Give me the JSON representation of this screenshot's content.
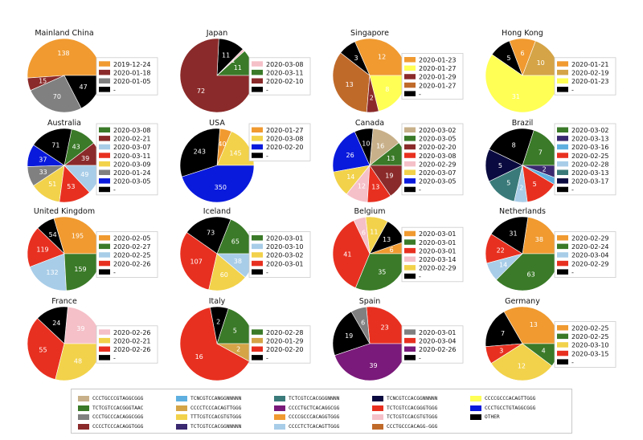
{
  "colors": {
    "CCCTGCCCGTAGGCGGG": "#c8b08a",
    "TCTCGTCCACGGGTAAC": "#3a7a28",
    "CCCTGCCCACAGGCGGG": "#808080",
    "CCCCTCCCACAGGTGGG": "#8b2a2a",
    "TCNCGTCCANGGNNNNN": "#5fb0e0",
    "CCCCTCCCACAGTTGGG": "#d4a447",
    "TTTCGTCCACGTGTGGG": "#f2d24a",
    "TCTCGTCCACGGNNNNN": "#3a2870",
    "TCTCGTCCACGGGNNNN": "#3a7a7a",
    "CCCCTGCTCACAGGCGG": "#7a1a7a",
    "CCCCGCCCACAGGTGGG": "#f09a30",
    "CCCCTCTCACAGTTGGG": "#a8cde8",
    "TCNCGTCCACGGNNNNN": "#0a0a40",
    "TCTCGTCCACGGGTGGG": "#e83020",
    "TCTCGTCCACGTGTGGG": "#f5c0c8",
    "CCCTGCCCACAGG-GGG": "#c06a2a",
    "CCCCGCCCACAGTTGGG": "#ffff55",
    "CCCTGCCTGTAGGCGGG": "#0a1adc",
    "OTHER": "#000000"
  },
  "bottom_legend": {
    "columns": [
      [
        "CCCTGCCCGTAGGCGGG",
        "TCTCGTCCACGGGTAAC",
        "CCCTGCCCACAGGCGGG",
        "CCCCTCCCACAGGTGGG"
      ],
      [
        "TCNCGTCCANGGNNNNN",
        "CCCCTCCCACAGTTGGG",
        "TTTCGTCCACGTGTGGG",
        "TCTCGTCCACGGNNNNN"
      ],
      [
        "TCTCGTCCACGGGNNNN",
        "CCCCTGCTCACAGGCGG",
        "CCCCGCCCACAGGTGGG",
        "CCCCTCTCACAGTTGGG"
      ],
      [
        "TCNCGTCCACGGNNNNN",
        "TCTCGTCCACGGGTGGG",
        "TCTCGTCCACGTGTGGG",
        "CCCTGCCCACAGG-GGG"
      ],
      [
        "CCCCGCCCACAGTTGGG",
        "CCCTGCCTGTAGGCGGG",
        "OTHER"
      ]
    ]
  },
  "chart_data": [
    {
      "type": "pie",
      "title": "Mainland China",
      "slices": [
        {
          "seq": "CCCCGCCCACAGGTGGG",
          "value": 138,
          "label": "138"
        },
        {
          "seq": "CCCCTCCCACAGGTGGG",
          "value": 15,
          "label": "15"
        },
        {
          "seq": "CCCTGCCCACAGGCGGG",
          "value": 70,
          "label": "70"
        },
        {
          "seq": "OTHER",
          "value": 47,
          "label": "47"
        }
      ],
      "legend": [
        {
          "seq": "CCCCGCCCACAGGTGGG",
          "label": "2019-12-24"
        },
        {
          "seq": "CCCCTCCCACAGGTGGG",
          "label": "2020-01-18"
        },
        {
          "seq": "CCCTGCCCACAGGCGGG",
          "label": "2020-01-05"
        },
        {
          "seq": "OTHER",
          "label": "-"
        }
      ]
    },
    {
      "type": "pie",
      "title": "Japan",
      "slices": [
        {
          "seq": "TCTCGTCCACGGGTAAC",
          "value": 11,
          "label": "11"
        },
        {
          "seq": "TCTCGTCCACGTGTGGG",
          "value": 1,
          "label": "1"
        },
        {
          "seq": "OTHER",
          "value": 11,
          "label": "11"
        },
        {
          "seq": "CCCCTCCCACAGGTGGG",
          "value": 72,
          "label": "72"
        }
      ],
      "legend": [
        {
          "seq": "TCTCGTCCACGTGTGGG",
          "label": "2020-03-08"
        },
        {
          "seq": "TCTCGTCCACGGGTAAC",
          "label": "2020-03-11"
        },
        {
          "seq": "CCCCTCCCACAGGTGGG",
          "label": "2020-02-10"
        },
        {
          "seq": "OTHER",
          "label": "-"
        }
      ]
    },
    {
      "type": "pie",
      "title": "Singapore",
      "slices": [
        {
          "seq": "CCCCGCCCACAGGTGGG",
          "value": 12,
          "label": "12"
        },
        {
          "seq": "OTHER",
          "value": 3,
          "label": "3"
        },
        {
          "seq": "CCCTGCCCACAGG-GGG",
          "value": 13,
          "label": "13"
        },
        {
          "seq": "CCCCTCCCACAGGTGGG",
          "value": 2,
          "label": "2"
        },
        {
          "seq": "CCCCGCCCACAGTTGGG",
          "value": 8,
          "label": "8"
        }
      ],
      "legend": [
        {
          "seq": "CCCCGCCCACAGGTGGG",
          "label": "2020-01-23"
        },
        {
          "seq": "CCCCGCCCACAGTTGGG",
          "label": "2020-01-27"
        },
        {
          "seq": "CCCCTCCCACAGGTGGG",
          "label": "2020-01-29"
        },
        {
          "seq": "CCCTGCCCACAGG-GGG",
          "label": "2020-01-27"
        },
        {
          "seq": "OTHER",
          "label": "-"
        }
      ]
    },
    {
      "type": "pie",
      "title": "Hong Kong",
      "slices": [
        {
          "seq": "CCCCTCCCACAGTTGGG",
          "value": 10,
          "label": "10"
        },
        {
          "seq": "CCCCGCCCACAGGTGGG",
          "value": 6,
          "label": "6"
        },
        {
          "seq": "OTHER",
          "value": 5,
          "label": "5"
        },
        {
          "seq": "CCCCGCCCACAGTTGGG",
          "value": 31,
          "label": "31"
        }
      ],
      "legend": [
        {
          "seq": "CCCCGCCCACAGGTGGG",
          "label": "2020-01-21"
        },
        {
          "seq": "CCCCTCCCACAGTTGGG",
          "label": "2020-02-19"
        },
        {
          "seq": "CCCCGCCCACAGTTGGG",
          "label": "2020-01-23"
        },
        {
          "seq": "OTHER",
          "label": "-"
        }
      ]
    },
    {
      "type": "pie",
      "title": "Australia",
      "slices": [
        {
          "seq": "CCCCTCCCACAGGTGGG",
          "value": 39,
          "label": "39"
        },
        {
          "seq": "TCTCGTCCACGGGTAAC",
          "value": 43,
          "label": "43"
        },
        {
          "seq": "OTHER",
          "value": 71,
          "label": "71"
        },
        {
          "seq": "CCCTGCCTGTAGGCGGG",
          "value": 37,
          "label": "37"
        },
        {
          "seq": "CCCTGCCCACAGGCGGG",
          "value": 33,
          "label": "33"
        },
        {
          "seq": "TTTCGTCCACGTGTGGG",
          "value": 51,
          "label": "51"
        },
        {
          "seq": "TCTCGTCCACGGGTGGG",
          "value": 53,
          "label": "53"
        },
        {
          "seq": "CCCCTCTCACAGTTGGG",
          "value": 49,
          "label": "49"
        }
      ],
      "legend": [
        {
          "seq": "TCTCGTCCACGGGTAAC",
          "label": "2020-03-08"
        },
        {
          "seq": "CCCCTCCCACAGGTGGG",
          "label": "2020-02-21"
        },
        {
          "seq": "CCCCTCTCACAGTTGGG",
          "label": "2020-03-07"
        },
        {
          "seq": "TCTCGTCCACGGGTGGG",
          "label": "2020-03-11"
        },
        {
          "seq": "TTTCGTCCACGTGTGGG",
          "label": "2020-03-09"
        },
        {
          "seq": "CCCTGCCCACAGGCGGG",
          "label": "2020-01-24"
        },
        {
          "seq": "CCCTGCCTGTAGGCGGG",
          "label": "2020-03-05"
        },
        {
          "seq": "OTHER",
          "label": "-"
        }
      ]
    },
    {
      "type": "pie",
      "title": "USA",
      "slices": [
        {
          "seq": "TTTCGTCCACGTGTGGG",
          "value": 145,
          "label": "145"
        },
        {
          "seq": "CCCCGCCCACAGGTGGG",
          "value": 40,
          "label": "40"
        },
        {
          "seq": "OTHER",
          "value": 243,
          "label": "243"
        },
        {
          "seq": "CCCTGCCTGTAGGCGGG",
          "value": 350,
          "label": "350"
        }
      ],
      "legend": [
        {
          "seq": "CCCCGCCCACAGGTGGG",
          "label": "2020-01-27"
        },
        {
          "seq": "TTTCGTCCACGTGTGGG",
          "label": "2020-03-08"
        },
        {
          "seq": "CCCTGCCTGTAGGCGGG",
          "label": "2020-02-20"
        },
        {
          "seq": "OTHER",
          "label": "-"
        }
      ]
    },
    {
      "type": "pie",
      "title": "Canada",
      "slices": [
        {
          "seq": "TCTCGTCCACGGGTAAC",
          "value": 13,
          "label": "13"
        },
        {
          "seq": "CCCTGCCCGTAGGCGGG",
          "value": 16,
          "label": "16"
        },
        {
          "seq": "OTHER",
          "value": 10,
          "label": "10"
        },
        {
          "seq": "CCCTGCCTGTAGGCGGG",
          "value": 26,
          "label": "26"
        },
        {
          "seq": "TTTCGTCCACGTGTGGG",
          "value": 14,
          "label": "14"
        },
        {
          "seq": "TCTCGTCCACGTGTGGG",
          "value": 12,
          "label": "12"
        },
        {
          "seq": "TCTCGTCCACGGGTGGG",
          "value": 13,
          "label": "13"
        },
        {
          "seq": "CCCCTCCCACAGGTGGG",
          "value": 19,
          "label": "19"
        }
      ],
      "legend": [
        {
          "seq": "CCCTGCCCGTAGGCGGG",
          "label": "2020-03-02"
        },
        {
          "seq": "TCTCGTCCACGGGTAAC",
          "label": "2020-03-05"
        },
        {
          "seq": "CCCCTCCCACAGGTGGG",
          "label": "2020-02-20"
        },
        {
          "seq": "TCTCGTCCACGGGTGGG",
          "label": "2020-03-08"
        },
        {
          "seq": "TCTCGTCCACGTGTGGG",
          "label": "2020-02-29"
        },
        {
          "seq": "TTTCGTCCACGTGTGGG",
          "label": "2020-03-07"
        },
        {
          "seq": "CCCTGCCTGTAGGCGGG",
          "label": "2020-03-05"
        },
        {
          "seq": "OTHER",
          "label": "-"
        }
      ]
    },
    {
      "type": "pie",
      "title": "Brazil",
      "slices": [
        {
          "seq": "TCTCGTCCACGGGTAAC",
          "value": 7,
          "label": "7"
        },
        {
          "seq": "OTHER",
          "value": 8,
          "label": "8"
        },
        {
          "seq": "TCNCGTCCACGGNNNNN",
          "value": 5,
          "label": "5"
        },
        {
          "seq": "TCTCGTCCACGGGNNNN",
          "value": 5,
          "label": "5"
        },
        {
          "seq": "CCCCTCTCACAGTTGGG",
          "value": 2,
          "label": "2"
        },
        {
          "seq": "TCTCGTCCACGGGTGGG",
          "value": 5,
          "label": "5"
        },
        {
          "seq": "TCNCGTCCANGGNNNNN",
          "value": 1,
          "label": ""
        },
        {
          "seq": "TCTCGTCCACGGNNNNN",
          "value": 2,
          "label": "2"
        }
      ],
      "legend": [
        {
          "seq": "TCTCGTCCACGGGTAAC",
          "label": "2020-03-02"
        },
        {
          "seq": "TCTCGTCCACGGNNNNN",
          "label": "2020-03-13"
        },
        {
          "seq": "TCNCGTCCANGGNNNNN",
          "label": "2020-03-16"
        },
        {
          "seq": "TCTCGTCCACGGGTGGG",
          "label": "2020-02-25"
        },
        {
          "seq": "CCCCTCTCACAGTTGGG",
          "label": "2020-02-28"
        },
        {
          "seq": "TCTCGTCCACGGGNNNN",
          "label": "2020-03-13"
        },
        {
          "seq": "TCNCGTCCACGGNNNNN",
          "label": "2020-03-17"
        },
        {
          "seq": "OTHER",
          "label": "-"
        }
      ]
    },
    {
      "type": "pie",
      "title": "United Kingdom",
      "slices": [
        {
          "seq": "CCCCGCCCACAGGTGGG",
          "value": 195,
          "label": "195"
        },
        {
          "seq": "OTHER",
          "value": 54,
          "label": "54"
        },
        {
          "seq": "TCTCGTCCACGGGTGGG",
          "value": 119,
          "label": "119"
        },
        {
          "seq": "CCCCTCTCACAGTTGGG",
          "value": 132,
          "label": "132"
        },
        {
          "seq": "TCTCGTCCACGGGTAAC",
          "value": 159,
          "label": "159"
        }
      ],
      "legend": [
        {
          "seq": "CCCCGCCCACAGGTGGG",
          "label": "2020-02-05"
        },
        {
          "seq": "TCTCGTCCACGGGTAAC",
          "label": "2020-02-27"
        },
        {
          "seq": "CCCCTCTCACAGTTGGG",
          "label": "2020-02-25"
        },
        {
          "seq": "TCTCGTCCACGGGTGGG",
          "label": "2020-02-26"
        },
        {
          "seq": "OTHER",
          "label": "-"
        }
      ]
    },
    {
      "type": "pie",
      "title": "Iceland",
      "slices": [
        {
          "seq": "TCTCGTCCACGGGTAAC",
          "value": 65,
          "label": "65"
        },
        {
          "seq": "OTHER",
          "value": 73,
          "label": "73"
        },
        {
          "seq": "TCTCGTCCACGGGTGGG",
          "value": 107,
          "label": "107"
        },
        {
          "seq": "TTTCGTCCACGTGTGGG",
          "value": 60,
          "label": "60"
        },
        {
          "seq": "CCCCTCTCACAGTTGGG",
          "value": 38,
          "label": "38"
        }
      ],
      "legend": [
        {
          "seq": "TCTCGTCCACGGGTAAC",
          "label": "2020-03-01"
        },
        {
          "seq": "CCCCTCTCACAGTTGGG",
          "label": "2020-03-10"
        },
        {
          "seq": "TTTCGTCCACGTGTGGG",
          "label": "2020-03-02"
        },
        {
          "seq": "TCTCGTCCACGGGTGGG",
          "label": "2020-03-01"
        },
        {
          "seq": "OTHER",
          "label": "-"
        }
      ]
    },
    {
      "type": "pie",
      "title": "Belgium",
      "slices": [
        {
          "seq": "CCCCGCCCACAGGTGGG",
          "value": 6,
          "label": "6"
        },
        {
          "seq": "OTHER",
          "value": 13,
          "label": "13"
        },
        {
          "seq": "TTTCGTCCACGTGTGGG",
          "value": 11,
          "label": "11"
        },
        {
          "seq": "TCTCGTCCACGTGTGGG",
          "value": 6,
          "label": "6"
        },
        {
          "seq": "TCTCGTCCACGGGTGGG",
          "value": 41,
          "label": "41"
        },
        {
          "seq": "TCTCGTCCACGGGTAAC",
          "value": 35,
          "label": "35"
        }
      ],
      "legend": [
        {
          "seq": "CCCCGCCCACAGGTGGG",
          "label": "2020-03-01"
        },
        {
          "seq": "TCTCGTCCACGGGTAAC",
          "label": "2020-03-01"
        },
        {
          "seq": "TCTCGTCCACGGGTGGG",
          "label": "2020-03-01"
        },
        {
          "seq": "TCTCGTCCACGTGTGGG",
          "label": "2020-03-14"
        },
        {
          "seq": "TTTCGTCCACGTGTGGG",
          "label": "2020-02-29"
        },
        {
          "seq": "OTHER",
          "label": "-"
        }
      ]
    },
    {
      "type": "pie",
      "title": "Netherlands",
      "slices": [
        {
          "seq": "CCCCGCCCACAGGTGGG",
          "value": 38,
          "label": "38"
        },
        {
          "seq": "OTHER",
          "value": 31,
          "label": "31"
        },
        {
          "seq": "TCTCGTCCACGGGTGGG",
          "value": 22,
          "label": "22"
        },
        {
          "seq": "CCCCTCTCACAGTTGGG",
          "value": 14,
          "label": "14"
        },
        {
          "seq": "TCTCGTCCACGGGTAAC",
          "value": 63,
          "label": "63"
        }
      ],
      "legend": [
        {
          "seq": "CCCCGCCCACAGGTGGG",
          "label": "2020-02-29"
        },
        {
          "seq": "TCTCGTCCACGGGTAAC",
          "label": "2020-02-24"
        },
        {
          "seq": "CCCCTCTCACAGTTGGG",
          "label": "2020-03-04"
        },
        {
          "seq": "TCTCGTCCACGGGTGGG",
          "label": "2020-02-29"
        },
        {
          "seq": "OTHER",
          "label": "-"
        }
      ]
    },
    {
      "type": "pie",
      "title": "France",
      "slices": [
        {
          "seq": "TCTCGTCCACGTGTGGG",
          "value": 39,
          "label": "39"
        },
        {
          "seq": "OTHER",
          "value": 24,
          "label": "24"
        },
        {
          "seq": "TCTCGTCCACGGGTGGG",
          "value": 55,
          "label": "55"
        },
        {
          "seq": "TTTCGTCCACGTGTGGG",
          "value": 48,
          "label": "48"
        }
      ],
      "legend": [
        {
          "seq": "TCTCGTCCACGTGTGGG",
          "label": "2020-02-26"
        },
        {
          "seq": "TTTCGTCCACGTGTGGG",
          "label": "2020-02-21"
        },
        {
          "seq": "TCTCGTCCACGGGTGGG",
          "label": "2020-02-26"
        },
        {
          "seq": "OTHER",
          "label": "-"
        }
      ]
    },
    {
      "type": "pie",
      "title": "Italy",
      "slices": [
        {
          "seq": "TCTCGTCCACGGGTAAC",
          "value": 5,
          "label": "5"
        },
        {
          "seq": "OTHER",
          "value": 2,
          "label": "2"
        },
        {
          "seq": "TCTCGTCCACGGGTGGG",
          "value": 16,
          "label": "16"
        },
        {
          "seq": "CCCCTCCCACAGTTGGG",
          "value": 2,
          "label": "2"
        }
      ],
      "legend": [
        {
          "seq": "TCTCGTCCACGGGTAAC",
          "label": "2020-02-28"
        },
        {
          "seq": "CCCCTCCCACAGTTGGG",
          "label": "2020-01-29"
        },
        {
          "seq": "TCTCGTCCACGGGTGGG",
          "label": "2020-02-20"
        },
        {
          "seq": "OTHER",
          "label": "-"
        }
      ]
    },
    {
      "type": "pie",
      "title": "Spain",
      "slices": [
        {
          "seq": "TCTCGTCCACGGGTGGG",
          "value": 23,
          "label": "23"
        },
        {
          "seq": "CCCTGCCCACAGGCGGG",
          "value": 6,
          "label": "6"
        },
        {
          "seq": "OTHER",
          "value": 19,
          "label": "19"
        },
        {
          "seq": "CCCCTGCTCACAGGCGG",
          "value": 39,
          "label": "39"
        }
      ],
      "legend": [
        {
          "seq": "CCCTGCCCACAGGCGGG",
          "label": "2020-03-01"
        },
        {
          "seq": "TCTCGTCCACGGGTGGG",
          "label": "2020-03-04"
        },
        {
          "seq": "CCCCTGCTCACAGGCGG",
          "label": "2020-02-26"
        },
        {
          "seq": "OTHER",
          "label": "-"
        }
      ]
    },
    {
      "type": "pie",
      "title": "Germany",
      "slices": [
        {
          "seq": "CCCCGCCCACAGGTGGG",
          "value": 13,
          "label": "13"
        },
        {
          "seq": "OTHER",
          "value": 7,
          "label": "7"
        },
        {
          "seq": "TCTCGTCCACGGGTGGG",
          "value": 3,
          "label": "3"
        },
        {
          "seq": "TTTCGTCCACGTGTGGG",
          "value": 12,
          "label": "12"
        },
        {
          "seq": "TCTCGTCCACGGGTAAC",
          "value": 4,
          "label": "4"
        }
      ],
      "legend": [
        {
          "seq": "CCCCGCCCACAGGTGGG",
          "label": "2020-02-25"
        },
        {
          "seq": "TCTCGTCCACGGGTAAC",
          "label": "2020-02-25"
        },
        {
          "seq": "TTTCGTCCACGTGTGGG",
          "label": "2020-03-10"
        },
        {
          "seq": "TCTCGTCCACGGGTGGG",
          "label": "2020-03-15"
        },
        {
          "seq": "OTHER",
          "label": "-"
        }
      ]
    }
  ]
}
